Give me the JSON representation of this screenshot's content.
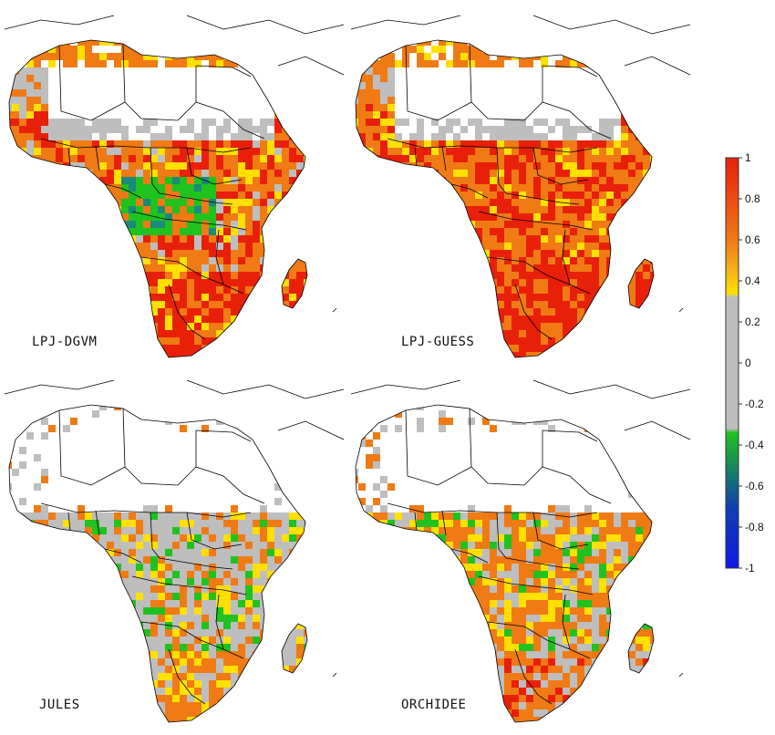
{
  "panels": [
    {
      "label": "LPJ-DGVM",
      "scheme": "lpjdgvm"
    },
    {
      "label": "LPJ-GUESS",
      "scheme": "lpjguess"
    },
    {
      "label": "JULES",
      "scheme": "jules"
    },
    {
      "label": "ORCHIDEE",
      "scheme": "orchidee"
    }
  ],
  "colorbar": {
    "ticks": [
      "1",
      "0.8",
      "0.6",
      "0.4",
      "0.2",
      "0",
      "-0.2",
      "-0.4",
      "-0.6",
      "-0.8",
      "-1"
    ],
    "range": [
      -1,
      1
    ],
    "colors": {
      "red": "#e8200a",
      "orange": "#f07a14",
      "yellow": "#ffe000",
      "gray": "#bebebe",
      "green": "#1fc21f",
      "teal": "#1a8a7a",
      "blue": "#1018e8"
    }
  }
}
